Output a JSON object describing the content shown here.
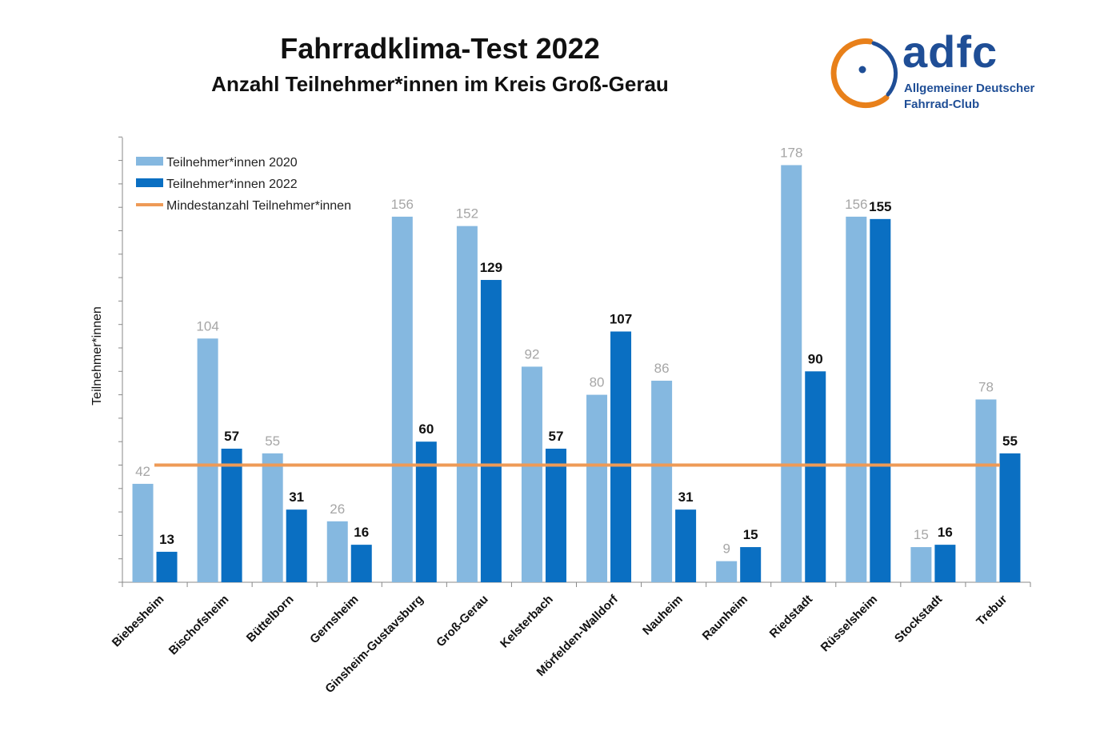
{
  "chart_data": {
    "type": "bar",
    "title": "Fahrradklima-Test 2022",
    "subtitle": "Anzahl Teilnehmer*innen im Kreis Groß-Gerau",
    "ylabel": "Teilnehmer*innen",
    "xlabel": "",
    "ylim": [
      0,
      190
    ],
    "grid": false,
    "legend_position": "top-left",
    "categories": [
      "Biebesheim",
      "Bischofsheim",
      "Büttelborn",
      "Gernsheim",
      "Ginsheim-Gustavsburg",
      "Groß-Gerau",
      "Kelsterbach",
      "Mörfelden-Walldorf",
      "Nauheim",
      "Raunheim",
      "Riedstadt",
      "Rüsselsheim",
      "Stockstadt",
      "Trebur"
    ],
    "series": [
      {
        "name": "Teilnehmer*innen 2020",
        "color": "#85b8e0",
        "values": [
          42,
          104,
          55,
          26,
          156,
          152,
          92,
          80,
          86,
          9,
          178,
          156,
          15,
          78
        ]
      },
      {
        "name": "Teilnehmer*innen 2022",
        "color": "#0a6fc2",
        "values": [
          13,
          57,
          31,
          16,
          60,
          129,
          57,
          107,
          31,
          15,
          90,
          155,
          16,
          55
        ]
      }
    ],
    "reference_line": {
      "name": "Mindestanzahl Teilnehmer*innen",
      "value": 50,
      "color": "#ee9a56"
    }
  },
  "logo": {
    "word": "adfc",
    "line1": "Allgemeiner Deutscher",
    "line2": "Fahrrad-Club",
    "ring_color": "#e8801a",
    "brand_color": "#1f4e96"
  }
}
